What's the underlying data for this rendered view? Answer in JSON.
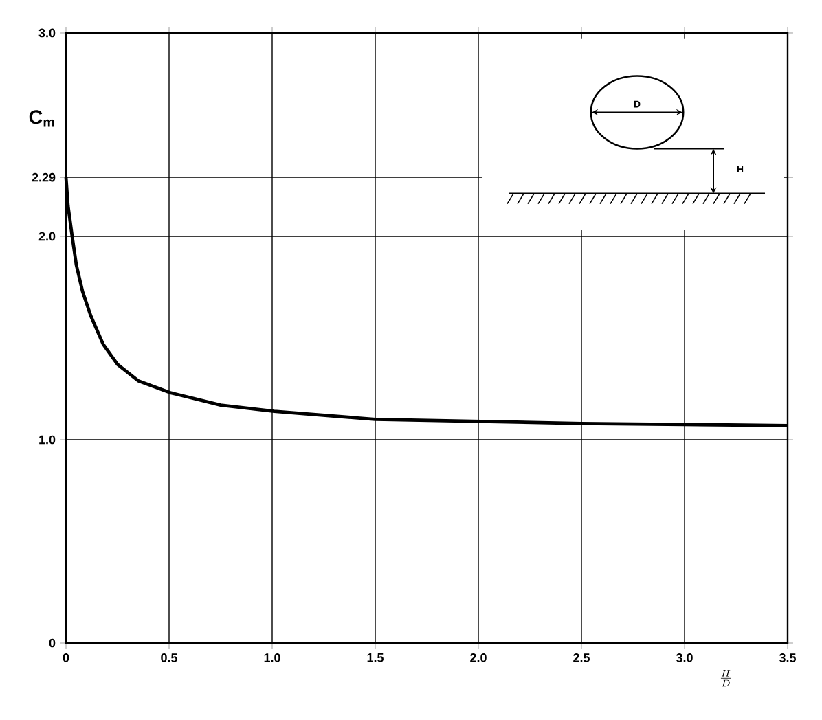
{
  "chart_data": {
    "type": "line",
    "xlabel": "\\frac{H}{D}",
    "ylabel": "C$_{m}$",
    "xlim": [
      0,
      3.5
    ],
    "ylim": [
      0,
      3
    ],
    "xticks": [
      0,
      0.5,
      {
        "value": 1,
        "label": "1.0"
      },
      1.5,
      {
        "value": 2,
        "label": "2.0"
      },
      2.5,
      {
        "value": 3,
        "label": "3.0"
      },
      3.5
    ],
    "yticks": [
      0,
      {
        "value": 1,
        "label": "1.0"
      },
      {
        "value": 2,
        "label": "2.0"
      },
      2.29,
      {
        "value": 3,
        "label": "3.0"
      }
    ],
    "grid": true,
    "series": [
      {
        "color": "#000000",
        "x": [
          0,
          0.01,
          0.03,
          0.05,
          0.08,
          0.12,
          0.18,
          0.25,
          0.35,
          0.51,
          0.75,
          1.01,
          1.5,
          2.0,
          2.5,
          3.0,
          3.5
        ],
        "values": [
          2.29,
          2.15,
          2.0,
          1.86,
          1.73,
          1.61,
          1.47,
          1.37,
          1.29,
          1.23,
          1.17,
          1.14,
          1.1,
          1.09,
          1.08,
          1.075,
          1.07
        ]
      }
    ],
    "annotations": [
      "D",
      "H"
    ]
  }
}
